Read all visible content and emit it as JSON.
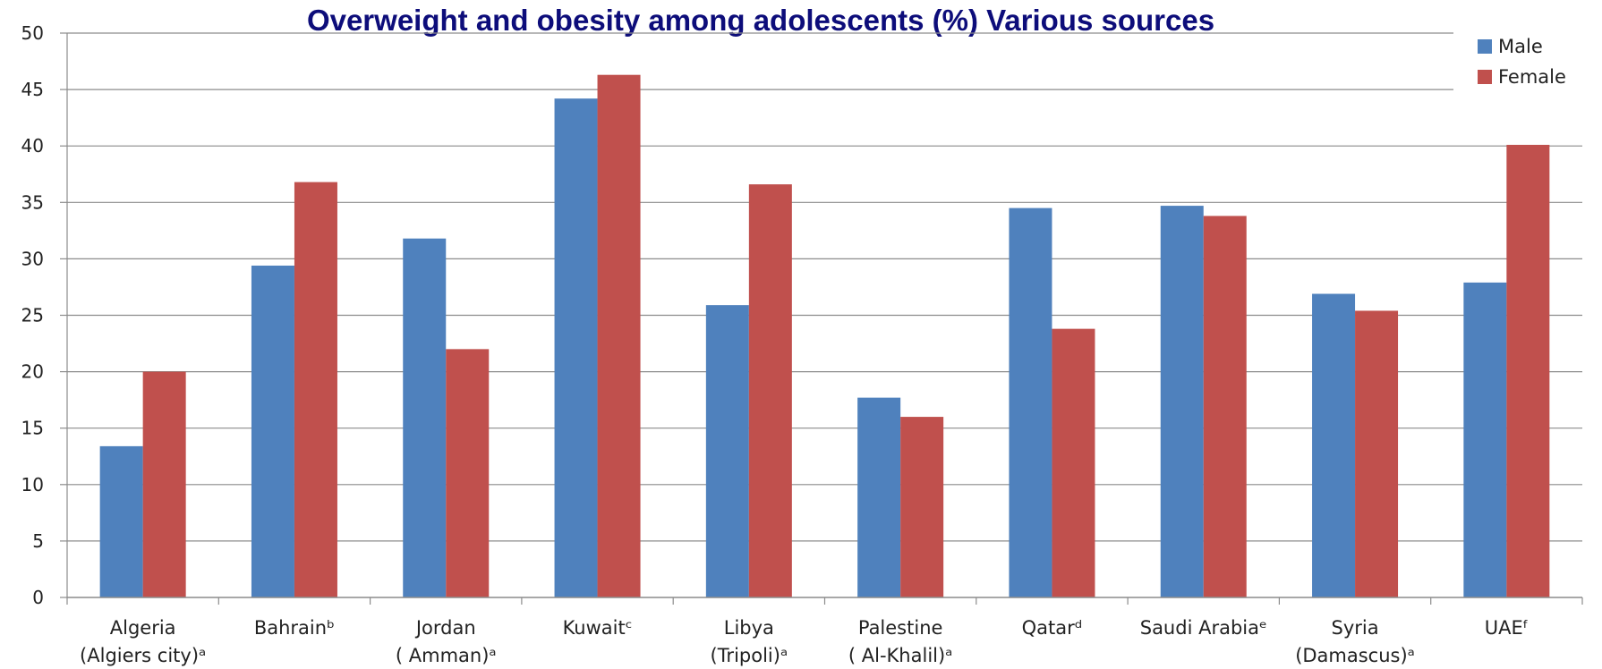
{
  "chart_data": {
    "type": "bar",
    "title": "Overweight and obesity among adolescents (%) Various sources",
    "xlabel": "",
    "ylabel": "",
    "ylim": [
      0,
      50
    ],
    "yticks": [
      0,
      5,
      10,
      15,
      20,
      25,
      30,
      35,
      40,
      45,
      50
    ],
    "grid": true,
    "legend_position": "top-right",
    "categories": [
      [
        "Algeria",
        "(Algiers city)ᵃ"
      ],
      [
        "Bahrainᵇ"
      ],
      [
        "Jordan",
        "( Amman)ᵃ"
      ],
      [
        "Kuwaitᶜ"
      ],
      [
        "Libya",
        "(Tripoli)ᵃ"
      ],
      [
        "Palestine",
        "( Al-Khalil)ᵃ"
      ],
      [
        "Qatarᵈ"
      ],
      [
        "Saudi Arabiaᵉ"
      ],
      [
        "Syria",
        "(Damascus)ᵃ"
      ],
      [
        "UAEᶠ"
      ]
    ],
    "series": [
      {
        "name": "Male",
        "color": "#4f81bd",
        "values": [
          13.4,
          29.4,
          31.8,
          44.2,
          25.9,
          17.7,
          34.5,
          34.7,
          26.9,
          27.9
        ]
      },
      {
        "name": "Female",
        "color": "#c0504d",
        "values": [
          20.0,
          36.8,
          22.0,
          46.3,
          36.6,
          16.0,
          23.8,
          33.8,
          25.4,
          40.1
        ]
      }
    ]
  }
}
